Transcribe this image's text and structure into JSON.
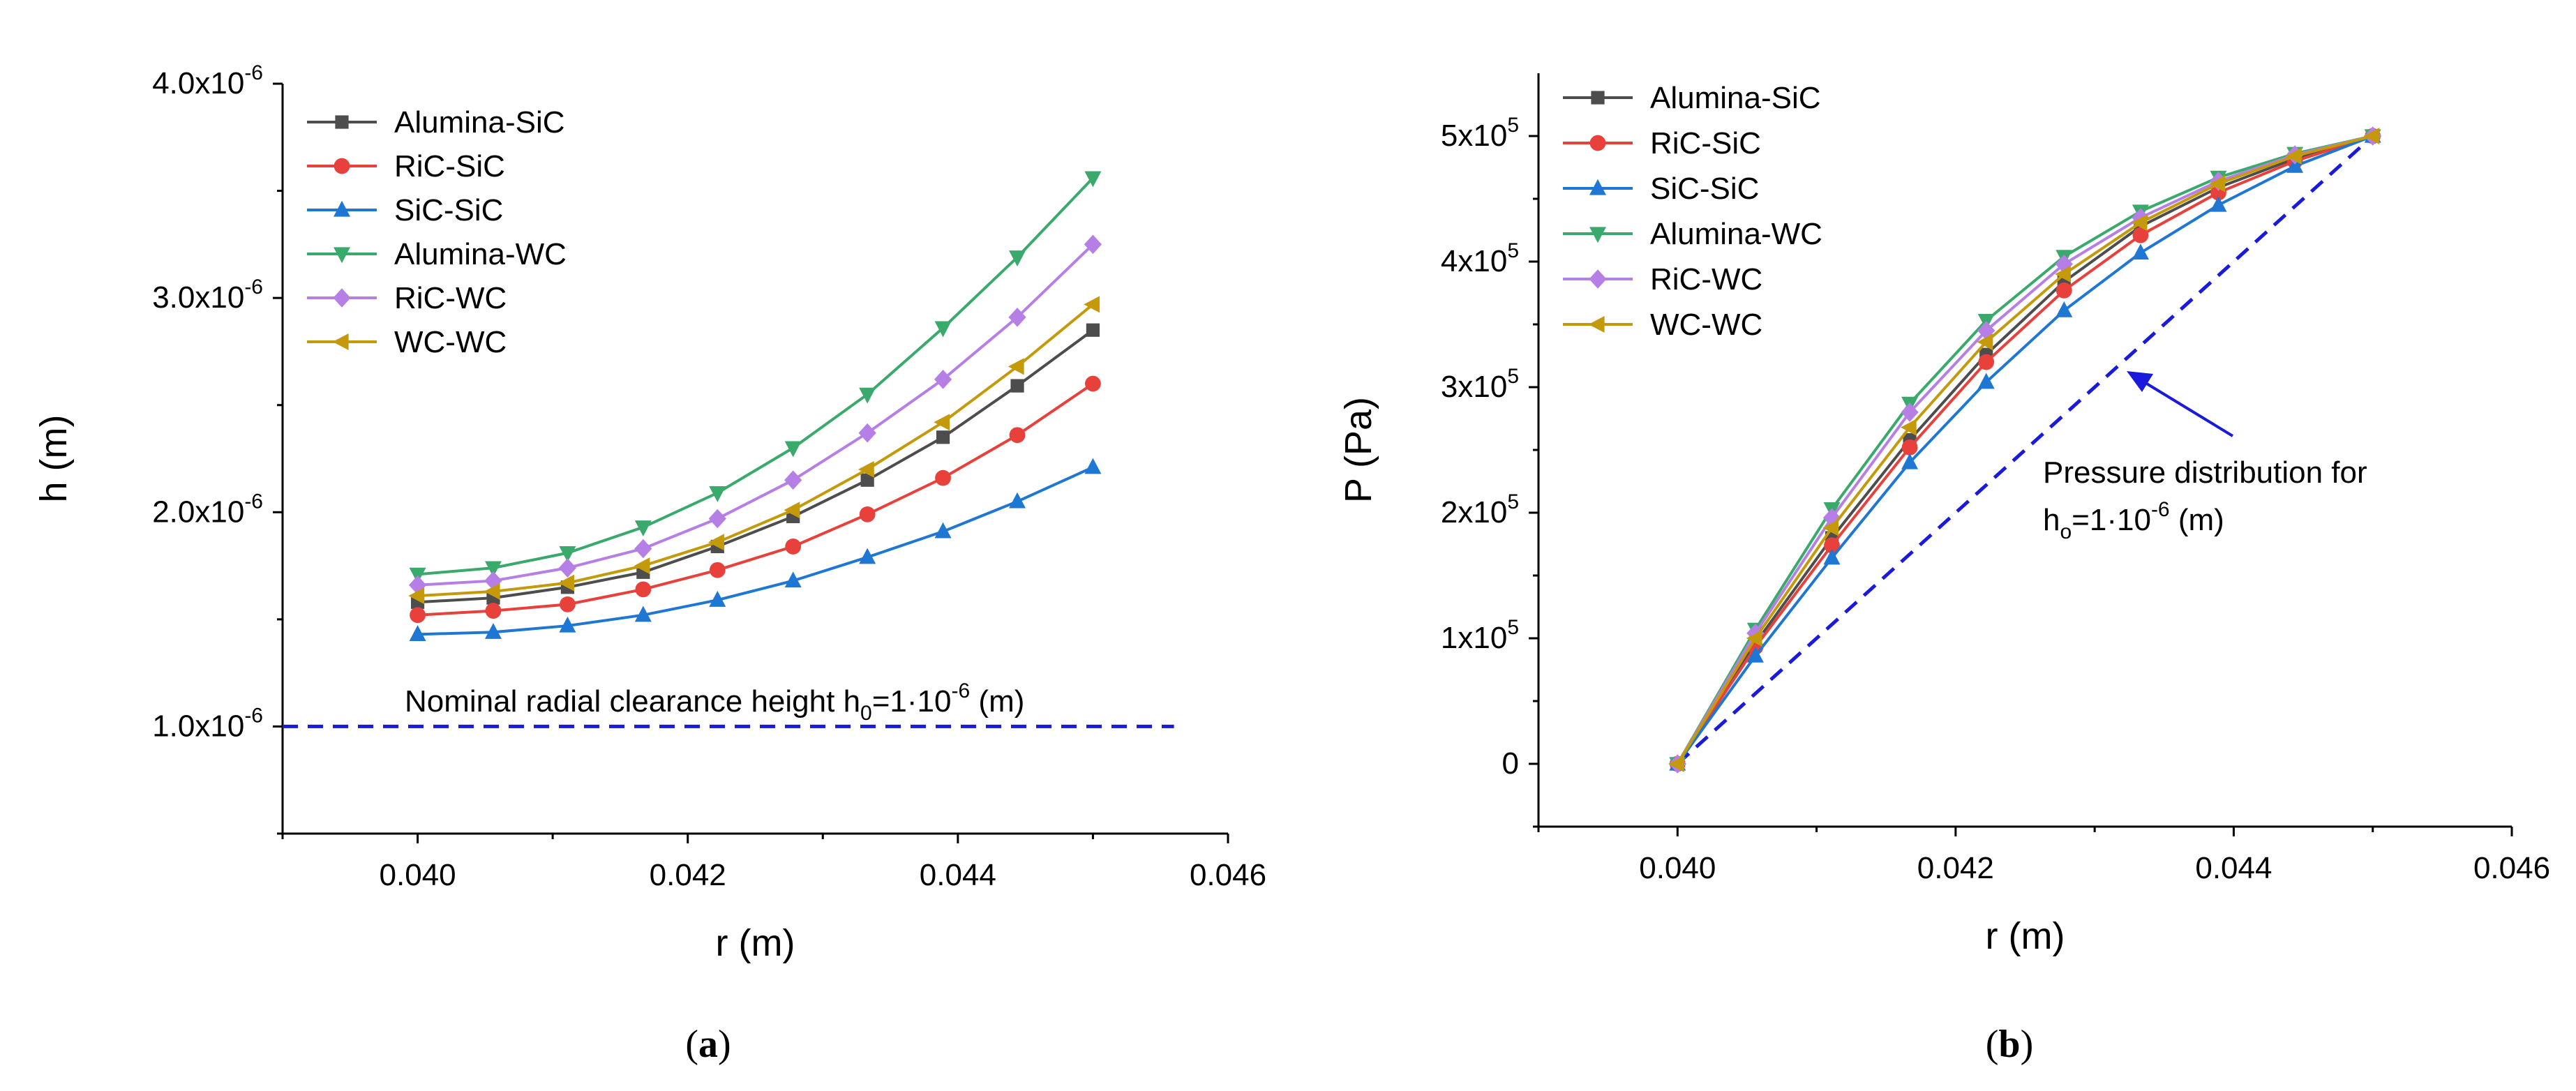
{
  "colors": {
    "alumina_sic": "#4d4d4d",
    "ric_sic": "#e8413c",
    "sic_sic": "#1f77d4",
    "alumina_wc": "#3aaa6c",
    "ric_wc": "#b57fe6",
    "wc_wc": "#c49a0a",
    "dashed": "#1a1adc",
    "axis": "#000000"
  },
  "chart_data": [
    {
      "type": "line",
      "panel_label": "(a)",
      "panel_letter": "a",
      "xlabel": "r (m)",
      "ylabel": "h (m)",
      "xlim": [
        0.039,
        0.046
      ],
      "ylim": [
        5e-07,
        4e-06
      ],
      "x_ticks": [
        0.04,
        0.042,
        0.044,
        0.046
      ],
      "x_tick_labels": [
        "0.040",
        "0.042",
        "0.044",
        "0.046"
      ],
      "y_ticks": [
        1e-06,
        2e-06,
        3e-06,
        4e-06
      ],
      "y_tick_labels": [
        {
          "mant": "1.0x10",
          "exp": "-6"
        },
        {
          "mant": "2.0x10",
          "exp": "-6"
        },
        {
          "mant": "3.0x10",
          "exp": "-6"
        },
        {
          "mant": "4.0x10",
          "exp": "-6"
        }
      ],
      "x": [
        0.04,
        0.04056,
        0.04111,
        0.04167,
        0.04222,
        0.04278,
        0.04333,
        0.04389,
        0.04444,
        0.045
      ],
      "series": [
        {
          "name": "Alumina-SiC",
          "color_key": "alumina_sic",
          "marker": "square",
          "values": [
            1.58e-06,
            1.6e-06,
            1.65e-06,
            1.72e-06,
            1.84e-06,
            1.98e-06,
            2.15e-06,
            2.35e-06,
            2.59e-06,
            2.85e-06
          ]
        },
        {
          "name": "RiC-SiC",
          "color_key": "ric_sic",
          "marker": "circle",
          "values": [
            1.52e-06,
            1.54e-06,
            1.57e-06,
            1.64e-06,
            1.73e-06,
            1.84e-06,
            1.99e-06,
            2.16e-06,
            2.36e-06,
            2.6e-06
          ]
        },
        {
          "name": "SiC-SiC",
          "color_key": "sic_sic",
          "marker": "triangle-up",
          "values": [
            1.43e-06,
            1.44e-06,
            1.47e-06,
            1.52e-06,
            1.59e-06,
            1.68e-06,
            1.79e-06,
            1.91e-06,
            2.05e-06,
            2.21e-06
          ]
        },
        {
          "name": "Alumina-WC",
          "color_key": "alumina_wc",
          "marker": "triangle-down",
          "values": [
            1.71e-06,
            1.74e-06,
            1.81e-06,
            1.93e-06,
            2.09e-06,
            2.3e-06,
            2.55e-06,
            2.86e-06,
            3.19e-06,
            3.56e-06
          ]
        },
        {
          "name": "RiC-WC",
          "color_key": "ric_wc",
          "marker": "diamond",
          "values": [
            1.66e-06,
            1.68e-06,
            1.74e-06,
            1.83e-06,
            1.97e-06,
            2.15e-06,
            2.37e-06,
            2.62e-06,
            2.91e-06,
            3.25e-06
          ]
        },
        {
          "name": "WC-WC",
          "color_key": "wc_wc",
          "marker": "triangle-left",
          "values": [
            1.61e-06,
            1.63e-06,
            1.67e-06,
            1.75e-06,
            1.86e-06,
            2.01e-06,
            2.2e-06,
            2.42e-06,
            2.68e-06,
            2.97e-06
          ]
        }
      ],
      "reference_line": {
        "y": 1e-06,
        "x_range": [
          0.039,
          0.0456
        ],
        "style": "dashed",
        "color_key": "dashed"
      },
      "annotation": {
        "text": "Nominal radial clearance height h",
        "sub": "0",
        "mid": "=1·10",
        "sup": "-6",
        "tail": " (m)"
      },
      "legend_position": "top-left"
    },
    {
      "type": "line",
      "panel_label": "(b)",
      "panel_letter": "b",
      "xlabel": "r (m)",
      "ylabel": "P (Pa)",
      "xlim": [
        0.039,
        0.046
      ],
      "ylim": [
        -50000,
        550000
      ],
      "x_ticks": [
        0.04,
        0.042,
        0.044,
        0.046
      ],
      "x_tick_labels": [
        "0.040",
        "0.042",
        "0.044",
        "0.046"
      ],
      "y_ticks": [
        0,
        100000,
        200000,
        300000,
        400000,
        500000
      ],
      "y_tick_labels": [
        {
          "mant": "0",
          "exp": ""
        },
        {
          "mant": "1x10",
          "exp": "5"
        },
        {
          "mant": "2x10",
          "exp": "5"
        },
        {
          "mant": "3x10",
          "exp": "5"
        },
        {
          "mant": "4x10",
          "exp": "5"
        },
        {
          "mant": "5x10",
          "exp": "5"
        }
      ],
      "x": [
        0.04,
        0.04056,
        0.04111,
        0.04167,
        0.04222,
        0.04278,
        0.04333,
        0.04389,
        0.04444,
        0.045
      ],
      "series": [
        {
          "name": "Alumina-SiC",
          "color_key": "alumina_sic",
          "marker": "square",
          "values": [
            0,
            96000,
            180000,
            258000,
            326000,
            384000,
            428000,
            459000,
            482000,
            500000
          ]
        },
        {
          "name": "RiC-SiC",
          "color_key": "ric_sic",
          "marker": "circle",
          "values": [
            0,
            93000,
            174000,
            252000,
            320000,
            377000,
            421000,
            455000,
            480000,
            500000
          ]
        },
        {
          "name": "SiC-SiC",
          "color_key": "sic_sic",
          "marker": "triangle-up",
          "values": [
            0,
            86000,
            164000,
            240000,
            304000,
            361000,
            407000,
            445000,
            476000,
            500000
          ]
        },
        {
          "name": "Alumina-WC",
          "color_key": "alumina_wc",
          "marker": "triangle-down",
          "values": [
            0,
            107000,
            203000,
            287000,
            353000,
            404000,
            440000,
            467000,
            486000,
            500000
          ]
        },
        {
          "name": "RiC-WC",
          "color_key": "ric_wc",
          "marker": "diamond",
          "values": [
            0,
            104000,
            196000,
            280000,
            345000,
            398000,
            435000,
            464000,
            485000,
            500000
          ]
        },
        {
          "name": "WC-WC",
          "color_key": "wc_wc",
          "marker": "triangle-left",
          "values": [
            0,
            100000,
            188000,
            268000,
            336000,
            390000,
            431000,
            462000,
            484000,
            500000
          ]
        }
      ],
      "reference_line": {
        "x_range": [
          0.04,
          0.045
        ],
        "y_range": [
          0,
          500000
        ],
        "style": "dashed",
        "color_key": "dashed"
      },
      "annotation": {
        "line1": "Pressure distribution for",
        "h": "h",
        "sub": "o",
        "mid": "=1·10",
        "sup": "-6",
        "tail": " (m)"
      },
      "legend_position": "top-left"
    }
  ]
}
